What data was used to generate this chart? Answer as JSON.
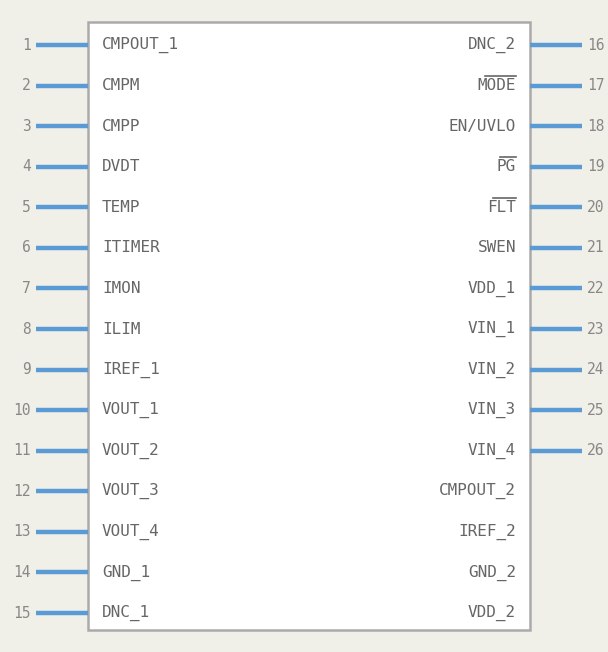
{
  "bg_color": "#f0f0e8",
  "box_color": "#aaaaaa",
  "box_facecolor": "#ffffff",
  "pin_color": "#5b9bd5",
  "text_color": "#666666",
  "num_color": "#888888",
  "left_pins": [
    {
      "num": 1,
      "name": "CMPOUT_1",
      "overline": false
    },
    {
      "num": 2,
      "name": "CMPM",
      "overline": false
    },
    {
      "num": 3,
      "name": "CMPP",
      "overline": false
    },
    {
      "num": 4,
      "name": "DVDT",
      "overline": false
    },
    {
      "num": 5,
      "name": "TEMP",
      "overline": false
    },
    {
      "num": 6,
      "name": "ITIMER",
      "overline": false
    },
    {
      "num": 7,
      "name": "IMON",
      "overline": false
    },
    {
      "num": 8,
      "name": "ILIM",
      "overline": false
    },
    {
      "num": 9,
      "name": "IREF_1",
      "overline": false
    },
    {
      "num": 10,
      "name": "VOUT_1",
      "overline": false
    },
    {
      "num": 11,
      "name": "VOUT_2",
      "overline": false
    },
    {
      "num": 12,
      "name": "VOUT_3",
      "overline": false
    },
    {
      "num": 13,
      "name": "VOUT_4",
      "overline": false
    },
    {
      "num": 14,
      "name": "GND_1",
      "overline": false
    },
    {
      "num": 15,
      "name": "DNC_1",
      "overline": false
    }
  ],
  "right_pins_with_line": [
    {
      "num": 16,
      "name": "DNC_2",
      "overline": false
    },
    {
      "num": 17,
      "name": "MODE",
      "overline": true
    },
    {
      "num": 18,
      "name": "EN/UVLO",
      "overline": false
    },
    {
      "num": 19,
      "name": "PG",
      "overline": true
    },
    {
      "num": 20,
      "name": "FLT",
      "overline": true
    },
    {
      "num": 21,
      "name": "SWEN",
      "overline": false
    },
    {
      "num": 22,
      "name": "VDD_1",
      "overline": false
    },
    {
      "num": 23,
      "name": "VIN_1",
      "overline": false
    },
    {
      "num": 24,
      "name": "VIN_2",
      "overline": false
    },
    {
      "num": 25,
      "name": "VIN_3",
      "overline": false
    },
    {
      "num": 26,
      "name": "VIN_4",
      "overline": false
    }
  ],
  "right_pins_no_line": [
    {
      "num": null,
      "name": "CMPOUT_2",
      "overline": false
    },
    {
      "num": null,
      "name": "IREF_2",
      "overline": false
    },
    {
      "num": null,
      "name": "GND_2",
      "overline": false
    },
    {
      "num": null,
      "name": "VDD_2",
      "overline": false
    }
  ],
  "figsize": [
    6.08,
    6.52
  ],
  "dpi": 100
}
